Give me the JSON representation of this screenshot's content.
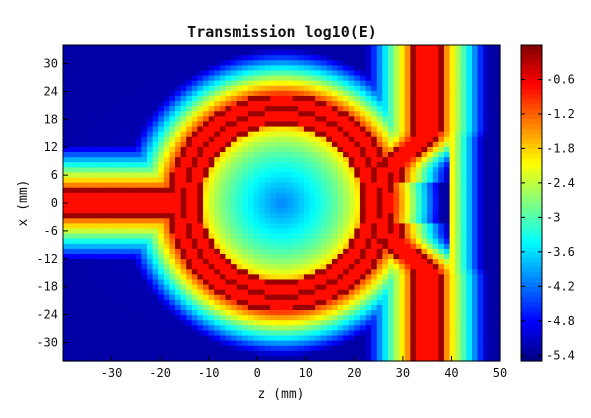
{
  "chart_data": {
    "type": "heatmap",
    "title": "Transmission log10(E)",
    "xlabel": "z (mm)",
    "ylabel": "x (mm)",
    "xlim": [
      -40,
      50
    ],
    "ylim": [
      -34,
      34
    ],
    "xticks": [
      -30,
      -20,
      -10,
      0,
      10,
      20,
      30,
      40,
      50
    ],
    "yticks": [
      30,
      24,
      18,
      12,
      6,
      0,
      -6,
      -12,
      -18,
      -24,
      -30
    ],
    "colorbar": {
      "range": [
        -5.5,
        0
      ],
      "ticks": [
        "-0.6",
        "-1.2",
        "-1.8",
        "-2.4",
        "-3",
        "-3.6",
        "-4.2",
        "-4.8",
        "-5.4"
      ],
      "tick_values": [
        -0.6,
        -1.2,
        -1.8,
        -2.4,
        -3,
        -3.6,
        -4.2,
        -4.8,
        -5.4
      ],
      "colormap": "jet"
    },
    "structures": {
      "input_waveguide": {
        "z_range": [
          -40,
          -17
        ],
        "x_range": [
          -3,
          3
        ],
        "core_value": -0.75,
        "edge_value": -0.15
      },
      "ring": {
        "center": [
          5,
          0
        ],
        "outer_radius": 23.5,
        "inner_radius": 16.5,
        "core_value": -0.75,
        "edge_value": -0.15
      },
      "bus_upper": {
        "z_range": [
          24,
          38
        ],
        "x_range": [
          7,
          34
        ],
        "core_value": -0.75
      },
      "bus_lower": {
        "z_range": [
          24,
          38
        ],
        "x_range": [
          -34,
          -7
        ],
        "core_value": -0.75
      },
      "ring_center_value": -3.6,
      "background_far_value": -5.3
    }
  }
}
